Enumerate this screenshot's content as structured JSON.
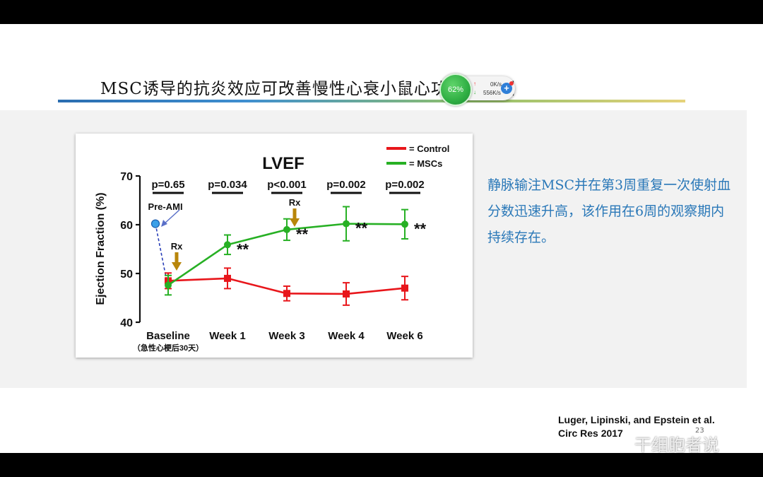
{
  "slide": {
    "title": "MSC诱导的抗炎效应可改善慢性心衰小鼠心功能的证据",
    "description": "静脉输注MSC并在第3周重复一次使射血分数迅速升高，该作用在6周的观察期内持续存在。",
    "citation": "Luger, Lipinski, and Epstein et al. Circ Res 2017",
    "page_number": "23",
    "watermark": "干细胞者说"
  },
  "network_widget": {
    "cpu_percent": "62%",
    "upload": "0K/s",
    "download": "556K/s"
  },
  "chart_data": {
    "type": "line",
    "title": "LVEF",
    "ylabel": "Ejection Fraction (%)",
    "xlabel": "",
    "ylim": [
      40,
      70
    ],
    "yticks": [
      "40",
      "50",
      "60",
      "70"
    ],
    "categories": [
      "Baseline",
      "Week 1",
      "Week 3",
      "Week 4",
      "Week 6"
    ],
    "baseline_note": "（急性心梗后30天）",
    "series": [
      {
        "name": "= Control",
        "color": "#e8161b",
        "values": [
          48.5,
          49.0,
          45.9,
          45.8,
          47.0
        ],
        "err": [
          1.6,
          2.1,
          1.5,
          2.3,
          2.4
        ]
      },
      {
        "name": "= MSCs",
        "color": "#27b024",
        "values": [
          47.6,
          55.9,
          59.0,
          60.2,
          60.1
        ],
        "err": [
          2.0,
          2.0,
          2.2,
          3.5,
          3.0
        ]
      }
    ],
    "pvalues": [
      "p=0.65",
      "p=0.034",
      "p<0.001",
      "p=0.002",
      "p=0.002"
    ],
    "significance": [
      "",
      "**",
      "**",
      "**",
      "**"
    ],
    "pre_ami": {
      "label": "Pre-AMI",
      "value": 60.2
    },
    "rx_labels": [
      "Rx",
      "Rx"
    ],
    "arrow_color": "#b8860b"
  }
}
